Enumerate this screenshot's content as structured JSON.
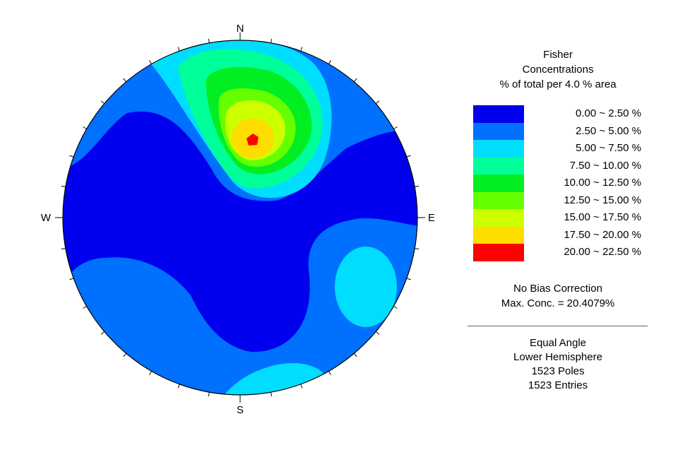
{
  "chart_data": {
    "type": "stereonet-contour",
    "directions": {
      "north": "N",
      "south": "S",
      "east": "E",
      "west": "W"
    },
    "tick_spacing_deg": 10,
    "max_concentration_pole": {
      "trend_deg": 8,
      "plunge_deg": 37,
      "value": 20.4079
    },
    "regions": [
      {
        "name": "west-central-low",
        "range": "0.00 ~ 2.50 %",
        "color": "#0000ee"
      },
      {
        "name": "north-peak-cluster",
        "range": "20.00 ~ 22.50 %",
        "color": "#ff0000"
      },
      {
        "name": "east-cluster",
        "range": "5.00 ~ 7.50 %",
        "color": "#00ddff"
      },
      {
        "name": "south-rim-cluster",
        "range": "5.00 ~ 7.50 %",
        "color": "#00ddff"
      }
    ]
  },
  "legend": {
    "title": [
      "Fisher",
      "Concentrations",
      "% of total per 4.0 % area"
    ],
    "bins": [
      {
        "label": " 0.00 ~  2.50 %",
        "color": "#0000ee"
      },
      {
        "label": " 2.50 ~  5.00 %",
        "color": "#0070ff"
      },
      {
        "label": " 5.00 ~  7.50 %",
        "color": "#00ddff"
      },
      {
        "label": " 7.50 ~ 10.00 %",
        "color": "#00ff99"
      },
      {
        "label": "10.00 ~ 12.50 %",
        "color": "#00ee22"
      },
      {
        "label": "12.50 ~ 15.00 %",
        "color": "#66ff00"
      },
      {
        "label": "15.00 ~ 17.50 %",
        "color": "#ccff00"
      },
      {
        "label": "17.50 ~ 20.00 %",
        "color": "#ffdd00"
      },
      {
        "label": "20.00 ~ 22.50 %",
        "color": "#ff0000"
      }
    ],
    "bias": "No Bias Correction",
    "max_conc": "Max. Conc. = 20.4079%",
    "projection": "Equal Angle",
    "hemisphere": "Lower Hemisphere",
    "poles": "1523 Poles",
    "entries": "1523 Entries"
  }
}
